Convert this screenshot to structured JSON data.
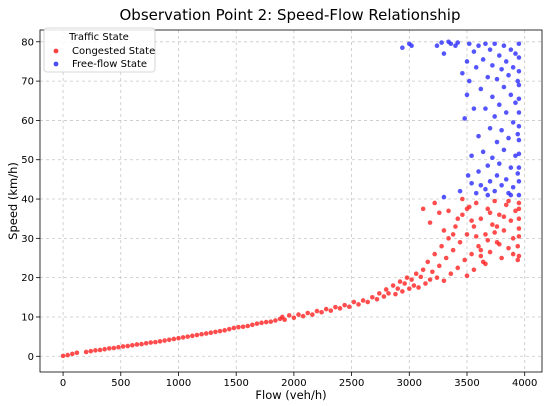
{
  "chart_data": {
    "type": "scatter",
    "title": "Observation Point 2: Speed-Flow Relationship",
    "xlabel": "Flow (veh/h)",
    "ylabel": "Speed (km/h)",
    "xlim": [
      -200,
      4150
    ],
    "ylim": [
      -4,
      83
    ],
    "xticks": [
      0,
      500,
      1000,
      1500,
      2000,
      2500,
      3000,
      3500,
      4000
    ],
    "yticks": [
      0,
      10,
      20,
      30,
      40,
      50,
      60,
      70,
      80
    ],
    "grid": true,
    "legend": {
      "title": "Traffic State",
      "placement": "top-left",
      "entries": [
        "Congested State",
        "Free-flow State"
      ]
    },
    "series": [
      {
        "name": "Congested State",
        "color": "#ff2020",
        "points": [
          [
            0,
            0.1
          ],
          [
            40,
            0.3
          ],
          [
            80,
            0.6
          ],
          [
            120,
            0.9
          ],
          [
            200,
            1.1
          ],
          [
            240,
            1.3
          ],
          [
            280,
            1.5
          ],
          [
            320,
            1.6
          ],
          [
            360,
            1.8
          ],
          [
            400,
            2.0
          ],
          [
            440,
            2.1
          ],
          [
            480,
            2.3
          ],
          [
            520,
            2.5
          ],
          [
            560,
            2.6
          ],
          [
            600,
            2.8
          ],
          [
            640,
            3.0
          ],
          [
            680,
            3.1
          ],
          [
            720,
            3.3
          ],
          [
            760,
            3.5
          ],
          [
            800,
            3.6
          ],
          [
            840,
            3.8
          ],
          [
            880,
            4.0
          ],
          [
            920,
            4.2
          ],
          [
            960,
            4.4
          ],
          [
            1000,
            4.6
          ],
          [
            1040,
            4.8
          ],
          [
            1080,
            5.0
          ],
          [
            1120,
            5.2
          ],
          [
            1160,
            5.4
          ],
          [
            1200,
            5.6
          ],
          [
            1240,
            5.8
          ],
          [
            1280,
            6.0
          ],
          [
            1320,
            6.2
          ],
          [
            1360,
            6.4
          ],
          [
            1400,
            6.6
          ],
          [
            1440,
            6.9
          ],
          [
            1480,
            7.2
          ],
          [
            1520,
            7.4
          ],
          [
            1560,
            7.5
          ],
          [
            1600,
            7.7
          ],
          [
            1640,
            8.0
          ],
          [
            1680,
            8.3
          ],
          [
            1720,
            8.5
          ],
          [
            1760,
            8.7
          ],
          [
            1800,
            8.8
          ],
          [
            1840,
            9.1
          ],
          [
            1880,
            9.5
          ],
          [
            1900,
            10.0
          ],
          [
            1920,
            9.3
          ],
          [
            1960,
            10.4
          ],
          [
            2000,
            9.8
          ],
          [
            2040,
            10.6
          ],
          [
            2080,
            10.2
          ],
          [
            2120,
            11.0
          ],
          [
            2160,
            10.6
          ],
          [
            2200,
            11.5
          ],
          [
            2240,
            11.2
          ],
          [
            2280,
            12.0
          ],
          [
            2320,
            11.6
          ],
          [
            2360,
            12.5
          ],
          [
            2400,
            12.2
          ],
          [
            2440,
            13.0
          ],
          [
            2480,
            12.6
          ],
          [
            2520,
            13.8
          ],
          [
            2560,
            13.2
          ],
          [
            2600,
            14.2
          ],
          [
            2640,
            13.8
          ],
          [
            2680,
            15.0
          ],
          [
            2720,
            14.5
          ],
          [
            2740,
            16.0
          ],
          [
            2780,
            15.2
          ],
          [
            2800,
            17.0
          ],
          [
            2820,
            16.0
          ],
          [
            2860,
            18.0
          ],
          [
            2880,
            15.8
          ],
          [
            2900,
            17.2
          ],
          [
            2920,
            19.0
          ],
          [
            2940,
            16.5
          ],
          [
            2960,
            18.5
          ],
          [
            2980,
            20.0
          ],
          [
            3000,
            17.2
          ],
          [
            3020,
            19.5
          ],
          [
            3040,
            18.0
          ],
          [
            3060,
            21.0
          ],
          [
            3080,
            17.5
          ],
          [
            3100,
            20.2
          ],
          [
            3120,
            22.0
          ],
          [
            3140,
            18.5
          ],
          [
            3160,
            24.0
          ],
          [
            3180,
            19.5
          ],
          [
            3200,
            21.5
          ],
          [
            3220,
            26.0
          ],
          [
            3240,
            20.0
          ],
          [
            3260,
            23.0
          ],
          [
            3280,
            28.0
          ],
          [
            3300,
            19.2
          ],
          [
            3320,
            25.0
          ],
          [
            3340,
            30.0
          ],
          [
            3360,
            21.0
          ],
          [
            3380,
            27.0
          ],
          [
            3400,
            33.0
          ],
          [
            3420,
            22.5
          ],
          [
            3440,
            29.0
          ],
          [
            3460,
            36.0
          ],
          [
            3480,
            24.5
          ],
          [
            3500,
            31.0
          ],
          [
            3520,
            38.0
          ],
          [
            3540,
            26.0
          ],
          [
            3560,
            33.0
          ],
          [
            3580,
            39.0
          ],
          [
            3600,
            28.0
          ],
          [
            3620,
            35.0
          ],
          [
            3640,
            24.0
          ],
          [
            3660,
            31.0
          ],
          [
            3680,
            37.5
          ],
          [
            3700,
            26.5
          ],
          [
            3720,
            33.5
          ],
          [
            3740,
            39.5
          ],
          [
            3760,
            29.0
          ],
          [
            3780,
            36.0
          ],
          [
            3800,
            25.0
          ],
          [
            3820,
            32.0
          ],
          [
            3840,
            38.5
          ],
          [
            3860,
            27.5
          ],
          [
            3880,
            34.5
          ],
          [
            3900,
            30.0
          ],
          [
            3920,
            37.0
          ],
          [
            3940,
            24.5
          ],
          [
            3950,
            32.5
          ],
          [
            3950,
            39.0
          ],
          [
            3120,
            37.5
          ],
          [
            3180,
            34.0
          ],
          [
            3220,
            39.0
          ],
          [
            3260,
            36.5
          ],
          [
            3300,
            32.0
          ],
          [
            3340,
            37.0
          ],
          [
            3380,
            31.0
          ],
          [
            3420,
            35.0
          ],
          [
            3460,
            40.0
          ],
          [
            3500,
            37.5
          ],
          [
            3540,
            34.5
          ],
          [
            3580,
            30.5
          ],
          [
            3620,
            27.0
          ],
          [
            3660,
            23.5
          ],
          [
            3700,
            36.5
          ],
          [
            3740,
            31.5
          ],
          [
            3780,
            28.5
          ],
          [
            3820,
            35.5
          ],
          [
            3860,
            39.5
          ],
          [
            3900,
            26.0
          ],
          [
            3940,
            28.0
          ],
          [
            3950,
            35.0
          ],
          [
            3950,
            25.5
          ],
          [
            3950,
            30.5
          ],
          [
            3950,
            37.5
          ],
          [
            3500,
            20.5
          ],
          [
            3560,
            22.0
          ],
          [
            3620,
            25.5
          ],
          [
            3680,
            29.5
          ],
          [
            3760,
            33.0
          ]
        ]
      },
      {
        "name": "Free-flow State",
        "color": "#2a2aff",
        "points": [
          [
            2940,
            78.5
          ],
          [
            3000,
            79.5
          ],
          [
            3020,
            79.0
          ],
          [
            3240,
            79.0
          ],
          [
            3280,
            79.8
          ],
          [
            3300,
            77.0
          ],
          [
            3340,
            80.0
          ],
          [
            3360,
            79.5
          ],
          [
            3400,
            79.0
          ],
          [
            3420,
            79.8
          ],
          [
            3460,
            72.0
          ],
          [
            3480,
            60.5
          ],
          [
            3500,
            75.0
          ],
          [
            3500,
            66.5
          ],
          [
            3520,
            79.5
          ],
          [
            3520,
            70.0
          ],
          [
            3540,
            44.0
          ],
          [
            3540,
            51.0
          ],
          [
            3560,
            77.5
          ],
          [
            3560,
            63.0
          ],
          [
            3580,
            73.5
          ],
          [
            3580,
            41.5
          ],
          [
            3600,
            79.0
          ],
          [
            3600,
            56.0
          ],
          [
            3600,
            47.0
          ],
          [
            3620,
            68.0
          ],
          [
            3620,
            43.5
          ],
          [
            3640,
            75.5
          ],
          [
            3640,
            52.0
          ],
          [
            3660,
            79.5
          ],
          [
            3660,
            63.0
          ],
          [
            3660,
            42.5
          ],
          [
            3680,
            71.0
          ],
          [
            3680,
            48.5
          ],
          [
            3680,
            41.0
          ],
          [
            3700,
            78.0
          ],
          [
            3700,
            58.0
          ],
          [
            3700,
            44.5
          ],
          [
            3720,
            74.0
          ],
          [
            3720,
            66.0
          ],
          [
            3720,
            50.5
          ],
          [
            3740,
            79.5
          ],
          [
            3740,
            61.0
          ],
          [
            3740,
            42.0
          ],
          [
            3760,
            70.5
          ],
          [
            3760,
            54.5
          ],
          [
            3760,
            46.0
          ],
          [
            3780,
            76.5
          ],
          [
            3780,
            64.0
          ],
          [
            3780,
            49.0
          ],
          [
            3800,
            73.0
          ],
          [
            3800,
            57.5
          ],
          [
            3800,
            43.5
          ],
          [
            3820,
            79.0
          ],
          [
            3820,
            68.5
          ],
          [
            3820,
            52.5
          ],
          [
            3840,
            75.0
          ],
          [
            3840,
            62.0
          ],
          [
            3840,
            45.0
          ],
          [
            3860,
            71.5
          ],
          [
            3860,
            55.5
          ],
          [
            3860,
            41.5
          ],
          [
            3880,
            78.0
          ],
          [
            3880,
            66.5
          ],
          [
            3880,
            48.0
          ],
          [
            3900,
            73.5
          ],
          [
            3900,
            59.5
          ],
          [
            3900,
            43.0
          ],
          [
            3920,
            77.0
          ],
          [
            3920,
            64.5
          ],
          [
            3920,
            51.0
          ],
          [
            3940,
            70.0
          ],
          [
            3940,
            56.5
          ],
          [
            3940,
            46.5
          ],
          [
            3950,
            79.5
          ],
          [
            3950,
            76.0
          ],
          [
            3950,
            72.5
          ],
          [
            3950,
            69.0
          ],
          [
            3950,
            65.5
          ],
          [
            3950,
            62.0
          ],
          [
            3950,
            58.5
          ],
          [
            3950,
            55.0
          ],
          [
            3950,
            51.5
          ],
          [
            3950,
            48.0
          ],
          [
            3950,
            44.5
          ],
          [
            3950,
            41.0
          ],
          [
            3300,
            40.5
          ],
          [
            3440,
            42.0
          ],
          [
            3510,
            46.0
          ],
          [
            3880,
            41.0
          ]
        ]
      }
    ]
  }
}
